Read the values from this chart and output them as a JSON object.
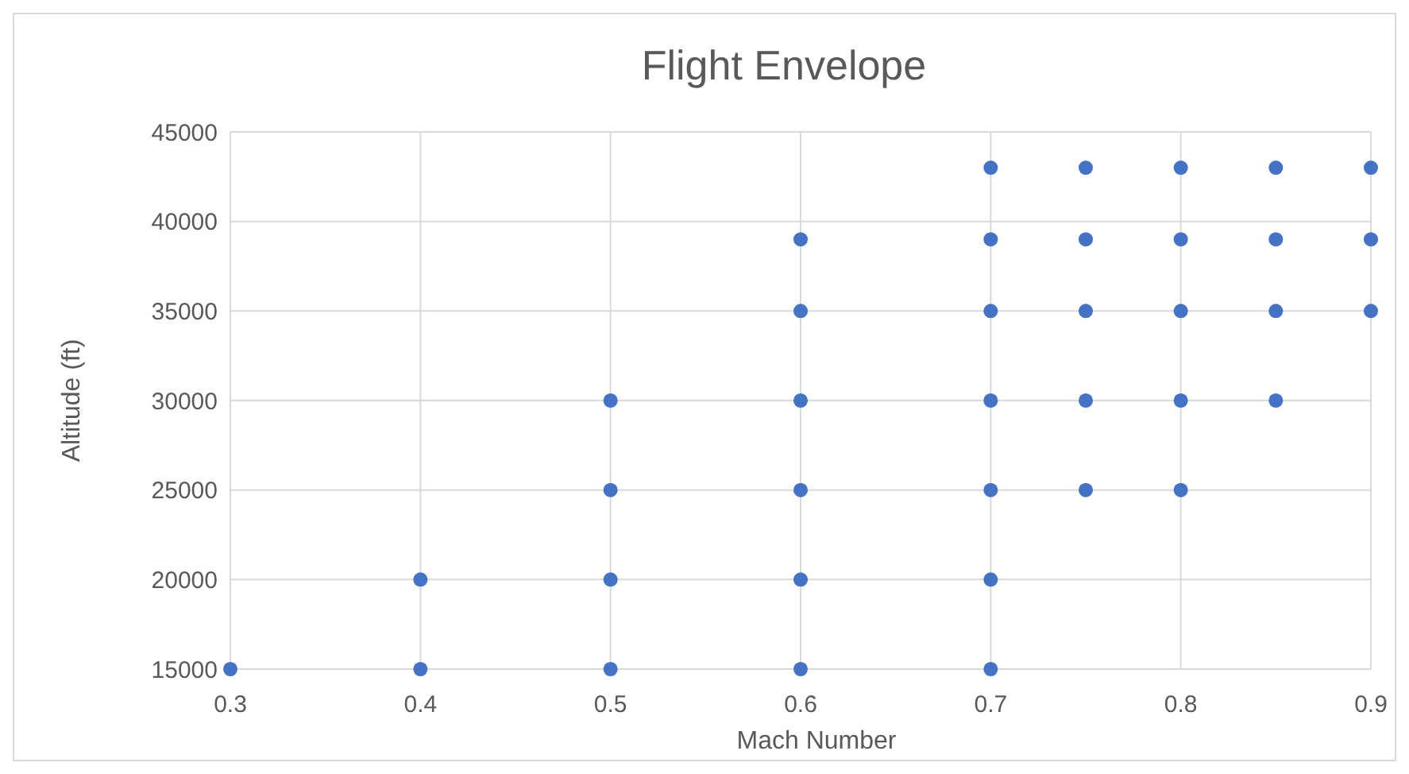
{
  "chart_data": {
    "type": "scatter",
    "title": "Flight Envelope",
    "xlabel": "Mach Number",
    "ylabel": "Altitude (ft)",
    "x": [
      0.3,
      0.4,
      0.4,
      0.5,
      0.5,
      0.5,
      0.5,
      0.6,
      0.6,
      0.6,
      0.6,
      0.6,
      0.6,
      0.7,
      0.7,
      0.7,
      0.7,
      0.7,
      0.7,
      0.7,
      0.75,
      0.75,
      0.75,
      0.75,
      0.75,
      0.8,
      0.8,
      0.8,
      0.8,
      0.8,
      0.85,
      0.85,
      0.85,
      0.85,
      0.9,
      0.9,
      0.9
    ],
    "series": [
      {
        "color": "#4472c4",
        "values": [
          15000,
          15000,
          20000,
          15000,
          20000,
          25000,
          30000,
          15000,
          20000,
          25000,
          30000,
          35000,
          39000,
          15000,
          20000,
          25000,
          30000,
          35000,
          39000,
          43000,
          25000,
          30000,
          35000,
          39000,
          43000,
          25000,
          30000,
          35000,
          39000,
          43000,
          30000,
          35000,
          39000,
          43000,
          35000,
          39000,
          43000
        ]
      }
    ],
    "xlim": [
      0.3,
      0.9
    ],
    "xticks": [
      0.3,
      0.4,
      0.5,
      0.6,
      0.7,
      0.8,
      0.9
    ],
    "ylim": [
      15000,
      45000
    ],
    "yticks": [
      15000,
      20000,
      25000,
      30000,
      35000,
      40000,
      45000
    ],
    "grid": true,
    "marker": "circle"
  }
}
